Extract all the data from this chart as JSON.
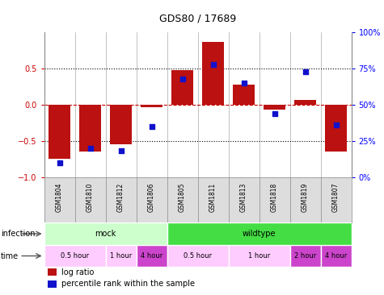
{
  "title": "GDS80 / 17689",
  "samples": [
    "GSM1804",
    "GSM1810",
    "GSM1812",
    "GSM1806",
    "GSM1805",
    "GSM1811",
    "GSM1813",
    "GSM1818",
    "GSM1819",
    "GSM1807"
  ],
  "log_ratio": [
    -0.75,
    -0.65,
    -0.55,
    -0.03,
    0.48,
    0.87,
    0.28,
    -0.07,
    0.07,
    -0.65
  ],
  "percentile": [
    10,
    20,
    18,
    35,
    68,
    78,
    65,
    44,
    73,
    36
  ],
  "bar_color": "#bb1111",
  "dot_color": "#1111cc",
  "infection_groups": [
    {
      "label": "mock",
      "start": 0,
      "end": 4,
      "color": "#ccffcc"
    },
    {
      "label": "wildtype",
      "start": 4,
      "end": 10,
      "color": "#44dd44"
    }
  ],
  "time_groups": [
    {
      "label": "0.5 hour",
      "start": 0,
      "end": 2,
      "color": "#ffccff"
    },
    {
      "label": "1 hour",
      "start": 2,
      "end": 3,
      "color": "#ffccff"
    },
    {
      "label": "4 hour",
      "start": 3,
      "end": 4,
      "color": "#cc44cc"
    },
    {
      "label": "0.5 hour",
      "start": 4,
      "end": 6,
      "color": "#ffccff"
    },
    {
      "label": "1 hour",
      "start": 6,
      "end": 8,
      "color": "#ffccff"
    },
    {
      "label": "2 hour",
      "start": 8,
      "end": 9,
      "color": "#cc44cc"
    },
    {
      "label": "4 hour",
      "start": 9,
      "end": 10,
      "color": "#cc44cc"
    }
  ],
  "left_ylim": [
    -1.0,
    1.0
  ],
  "left_yticks": [
    -1.0,
    -0.5,
    0.0,
    0.5
  ],
  "right_yticks": [
    0,
    25,
    50,
    75,
    100
  ],
  "right_yticklabels": [
    "0%",
    "25%",
    "50%",
    "75%",
    "100%"
  ],
  "dotted_hlines": [
    -0.5,
    0.5
  ],
  "zero_line": 0.0,
  "bar_width": 0.7,
  "title_fontsize": 9,
  "legend_items": [
    {
      "label": "log ratio",
      "color": "#bb1111"
    },
    {
      "label": "percentile rank within the sample",
      "color": "#1111cc"
    }
  ],
  "sample_bg": "#dddddd",
  "border_color": "#888888"
}
